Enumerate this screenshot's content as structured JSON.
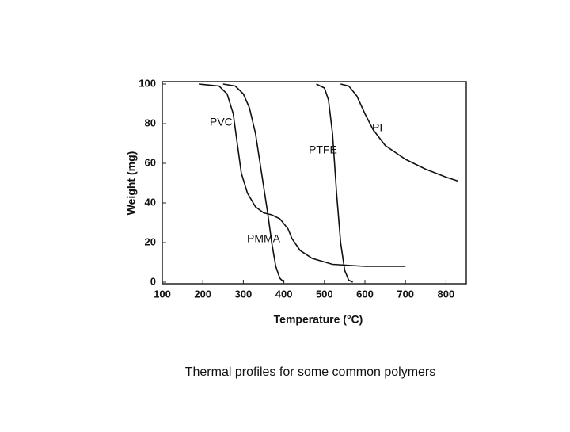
{
  "chart_data": {
    "type": "line",
    "caption": "Thermal profiles for some common polymers",
    "x_label": "Temperature (°C)",
    "y_label": "Weight (mg)",
    "xlim": [
      100,
      850
    ],
    "ylim": [
      0,
      100
    ],
    "xticks": [
      100,
      200,
      300,
      400,
      500,
      600,
      700,
      800
    ],
    "yticks": [
      0,
      20,
      40,
      60,
      80,
      100
    ],
    "color": "#111111",
    "series": [
      {
        "name": "PVC",
        "x": [
          190,
          240,
          260,
          275,
          285,
          295,
          310,
          330,
          350,
          370,
          390,
          410,
          420,
          440,
          470,
          520,
          600,
          700
        ],
        "values": [
          100,
          99,
          95,
          85,
          70,
          55,
          45,
          38,
          35,
          34,
          32,
          27,
          22,
          16,
          12,
          9,
          8,
          8
        ]
      },
      {
        "name": "PMMA",
        "x": [
          250,
          280,
          300,
          315,
          330,
          345,
          360,
          370,
          380,
          390,
          400
        ],
        "values": [
          100,
          99,
          95,
          88,
          75,
          55,
          35,
          20,
          8,
          2,
          0
        ]
      },
      {
        "name": "PTFE",
        "x": [
          480,
          500,
          510,
          520,
          530,
          540,
          550,
          560,
          570
        ],
        "values": [
          100,
          98,
          92,
          75,
          45,
          20,
          6,
          1,
          0
        ]
      },
      {
        "name": "PI",
        "x": [
          540,
          560,
          580,
          600,
          620,
          650,
          700,
          750,
          800,
          830
        ],
        "values": [
          100,
          99,
          94,
          85,
          77,
          69,
          62,
          57,
          53,
          51
        ]
      }
    ]
  }
}
